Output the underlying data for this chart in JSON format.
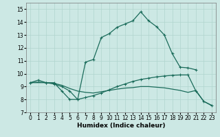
{
  "xlabel": "Humidex (Indice chaleur)",
  "xlim": [
    -0.5,
    23.5
  ],
  "ylim": [
    7,
    15.5
  ],
  "yticks": [
    7,
    8,
    9,
    10,
    11,
    12,
    13,
    14,
    15
  ],
  "xticks": [
    0,
    1,
    2,
    3,
    4,
    5,
    6,
    7,
    8,
    9,
    10,
    11,
    12,
    13,
    14,
    15,
    16,
    17,
    18,
    19,
    20,
    21,
    22,
    23
  ],
  "background_color": "#cce8e4",
  "grid_color": "#b0d4ce",
  "line_color": "#1a6b5a",
  "line1_x": [
    0,
    1,
    2,
    3,
    4,
    5,
    6,
    7,
    8,
    9,
    10,
    11,
    12,
    13,
    14,
    15,
    16,
    17,
    18,
    19,
    20,
    21
  ],
  "line1_y": [
    9.3,
    9.5,
    9.3,
    9.3,
    8.65,
    8.0,
    8.0,
    10.9,
    11.1,
    12.8,
    13.1,
    13.6,
    13.85,
    14.1,
    14.8,
    14.1,
    13.65,
    13.0,
    11.55,
    10.5,
    10.45,
    10.3
  ],
  "line2_x": [
    0,
    1,
    2,
    3,
    4,
    5,
    6,
    7,
    8,
    9,
    10,
    11,
    12,
    13,
    14,
    15,
    16,
    17,
    18,
    19,
    20,
    21,
    22,
    23
  ],
  "line2_y": [
    9.3,
    9.35,
    9.3,
    9.25,
    9.1,
    8.85,
    8.65,
    8.55,
    8.5,
    8.6,
    8.7,
    8.8,
    8.88,
    8.92,
    9.0,
    9.0,
    8.95,
    8.9,
    8.8,
    8.7,
    8.55,
    8.7,
    7.85,
    7.55
  ],
  "line3_x": [
    0,
    2,
    3,
    4,
    5,
    6,
    7,
    8,
    9,
    10,
    11,
    12,
    13,
    14,
    15,
    16,
    17,
    18,
    19,
    20,
    21,
    22,
    23
  ],
  "line3_y": [
    9.3,
    9.3,
    9.2,
    9.0,
    8.65,
    8.0,
    8.15,
    8.3,
    8.5,
    8.75,
    9.0,
    9.2,
    9.4,
    9.55,
    9.65,
    9.75,
    9.82,
    9.87,
    9.9,
    9.9,
    8.65,
    7.85,
    7.52
  ],
  "marker": "+",
  "markersize": 3,
  "linewidth": 0.9
}
